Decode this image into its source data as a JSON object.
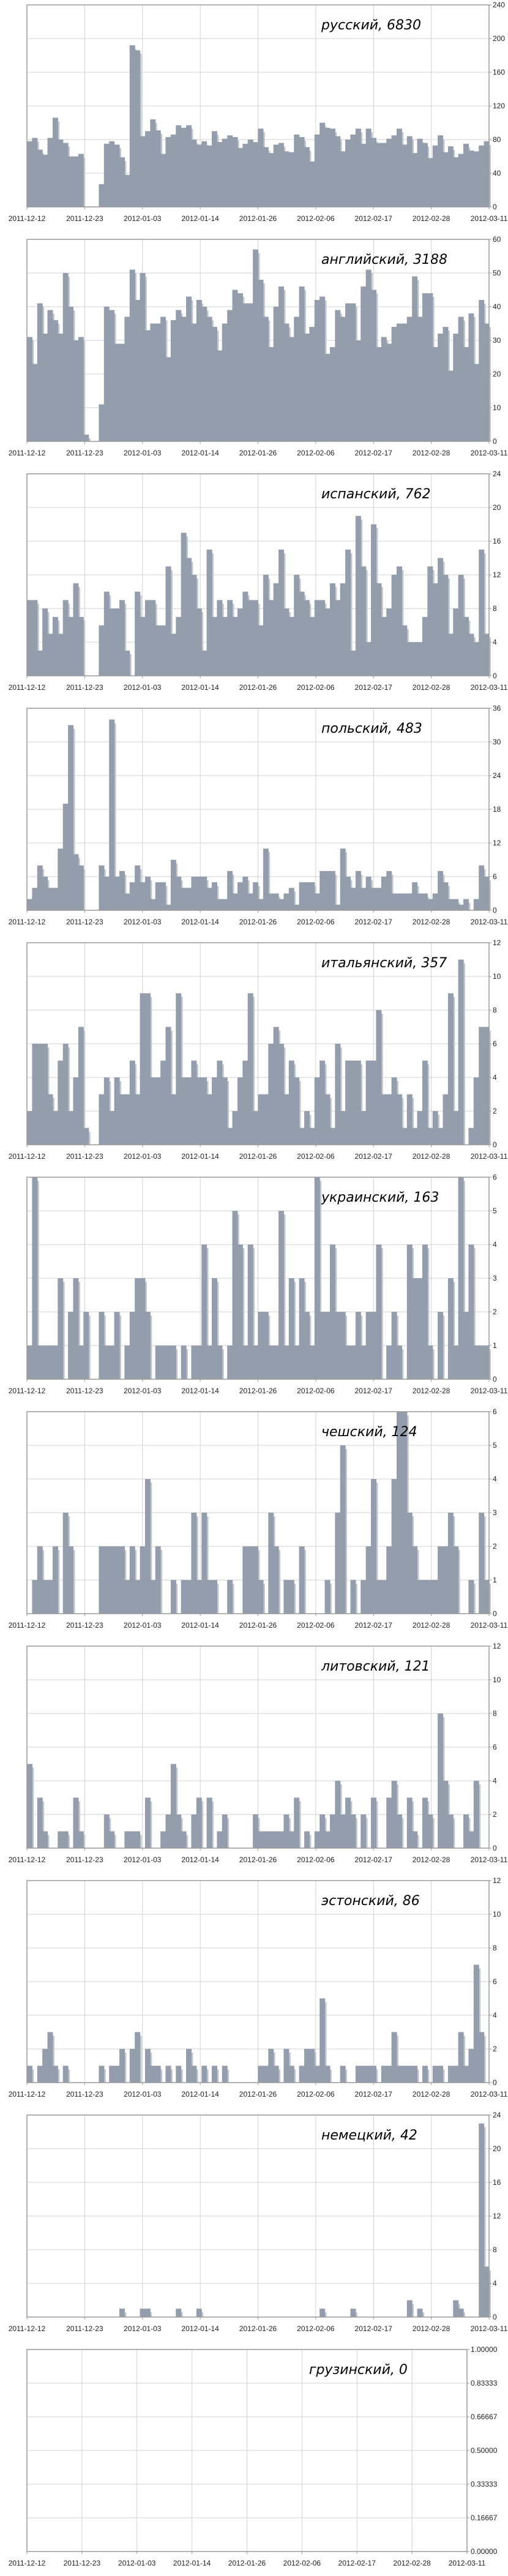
{
  "x_tick_labels": [
    "2011-12-12",
    "2011-12-23",
    "2012-01-03",
    "2012-01-14",
    "2012-01-26",
    "2012-02-06",
    "2012-02-17",
    "2012-02-28",
    "2012-03-11"
  ],
  "colors": {
    "bar": "#939dab",
    "shadow": "#c3c8cf",
    "grid": "#d0d0d0",
    "frame": "#9a9a9a"
  },
  "chart_data": [
    {
      "type": "bar",
      "title": "русский, 6830",
      "ylim": [
        0,
        240
      ],
      "yticks": [
        "0",
        "40",
        "80",
        "120",
        "160",
        "200",
        "240"
      ],
      "grid": true,
      "values": [
        78,
        82,
        68,
        62,
        82,
        106,
        80,
        76,
        60,
        60,
        63,
        0,
        0,
        0,
        27,
        75,
        78,
        74,
        59,
        38,
        192,
        186,
        84,
        90,
        104,
        91,
        63,
        83,
        86,
        97,
        94,
        97,
        80,
        74,
        78,
        73,
        90,
        77,
        81,
        85,
        83,
        70,
        75,
        80,
        77,
        93,
        71,
        64,
        74,
        76,
        66,
        65,
        86,
        83,
        71,
        54,
        86,
        100,
        94,
        93,
        84,
        66,
        80,
        86,
        93,
        75,
        93,
        82,
        76,
        76,
        81,
        85,
        93,
        74,
        84,
        64,
        81,
        76,
        58,
        73,
        85,
        65,
        72,
        59,
        63,
        75,
        67,
        66,
        73,
        78
      ]
    },
    {
      "type": "bar",
      "title": "английский, 3188",
      "ylim": [
        0,
        60
      ],
      "yticks": [
        "0",
        "10",
        "20",
        "30",
        "40",
        "50",
        "60"
      ],
      "grid": true,
      "values": [
        31,
        23,
        41,
        32,
        39,
        36,
        32,
        50,
        40,
        30,
        31,
        2,
        0,
        0,
        11,
        40,
        39,
        29,
        29,
        37,
        51,
        42,
        50,
        33,
        35,
        35,
        37,
        25,
        36,
        39,
        37,
        43,
        35,
        42,
        40,
        37,
        34,
        27,
        35,
        39,
        45,
        44,
        41,
        41,
        57,
        48,
        37,
        28,
        40,
        46,
        35,
        31,
        37,
        46,
        32,
        34,
        42,
        43,
        26,
        28,
        39,
        37,
        41,
        41,
        30,
        46,
        51,
        45,
        28,
        31,
        29,
        34,
        35,
        35,
        37,
        49,
        37,
        44,
        44,
        28,
        32,
        34,
        21,
        32,
        37,
        28,
        38,
        23,
        42,
        35
      ]
    },
    {
      "type": "bar",
      "title": "испанский, 762",
      "ylim": [
        0,
        24
      ],
      "yticks": [
        "0",
        "4",
        "8",
        "12",
        "16",
        "20",
        "24"
      ],
      "grid": true,
      "values": [
        9,
        9,
        3,
        8,
        5,
        7,
        5,
        9,
        7,
        11,
        7,
        0,
        0,
        0,
        6,
        10,
        8,
        8,
        9,
        3,
        0,
        10,
        7,
        9,
        9,
        6,
        6,
        13,
        5,
        7,
        17,
        14,
        12,
        8,
        3,
        15,
        7,
        9,
        7,
        9,
        7,
        8,
        10,
        9,
        9,
        6,
        12,
        9,
        11,
        15,
        8,
        7,
        12,
        10,
        9,
        7,
        9,
        9,
        8,
        11,
        9,
        11,
        15,
        3,
        19,
        13,
        4,
        18,
        11,
        7,
        8,
        12,
        13,
        6,
        4,
        4,
        4,
        7,
        13,
        11,
        14,
        12,
        5,
        8,
        12,
        7,
        5,
        4,
        15,
        5
      ]
    },
    {
      "type": "bar",
      "title": "польский, 483",
      "ylim": [
        0,
        36
      ],
      "yticks": [
        "0",
        "6",
        "12",
        "18",
        "24",
        "30",
        "36"
      ],
      "grid": true,
      "values": [
        2,
        4,
        8,
        6,
        4,
        4,
        11,
        19,
        33,
        10,
        8,
        0,
        0,
        0,
        8,
        6,
        34,
        6,
        7,
        3,
        5,
        8,
        5,
        6,
        2,
        5,
        5,
        1,
        9,
        6,
        4,
        4,
        6,
        6,
        6,
        4,
        5,
        2,
        2,
        7,
        3,
        5,
        6,
        3,
        5,
        2,
        11,
        3,
        3,
        2,
        3,
        4,
        1,
        5,
        5,
        5,
        3,
        7,
        7,
        7,
        1,
        11,
        6,
        4,
        7,
        4,
        6,
        4,
        4,
        6,
        7,
        3,
        3,
        3,
        3,
        5,
        3,
        3,
        2,
        3,
        7,
        5,
        2,
        2,
        1,
        2,
        0,
        2,
        8,
        6
      ]
    },
    {
      "type": "bar",
      "title": "итальянский, 357",
      "ylim": [
        0,
        12
      ],
      "yticks": [
        "0",
        "2",
        "4",
        "6",
        "8",
        "10",
        "12"
      ],
      "grid": true,
      "values": [
        2,
        6,
        6,
        6,
        3,
        2,
        5,
        6,
        2,
        4,
        7,
        1,
        0,
        0,
        3,
        4,
        2,
        4,
        3,
        3,
        5,
        3,
        9,
        9,
        4,
        4,
        5,
        7,
        3,
        9,
        4,
        4,
        5,
        4,
        4,
        3,
        4,
        5,
        4,
        1,
        2,
        4,
        5,
        9,
        2,
        3,
        3,
        6,
        7,
        6,
        3,
        5,
        4,
        1,
        2,
        1,
        4,
        5,
        3,
        1,
        6,
        2,
        5,
        5,
        5,
        2,
        5,
        5,
        8,
        3,
        3,
        4,
        3,
        1,
        3,
        1,
        2,
        5,
        1,
        2,
        1,
        3,
        9,
        2,
        11,
        0,
        1,
        4,
        7,
        7
      ]
    },
    {
      "type": "bar",
      "title": "украинский, 163",
      "ylim": [
        0,
        6
      ],
      "yticks": [
        "0",
        "1",
        "2",
        "3",
        "4",
        "5",
        "6"
      ],
      "grid": true,
      "values": [
        1,
        6,
        1,
        1,
        1,
        1,
        3,
        0,
        2,
        3,
        1,
        2,
        0,
        0,
        2,
        1,
        1,
        2,
        0,
        1,
        2,
        3,
        3,
        2,
        0,
        1,
        1,
        1,
        1,
        0,
        1,
        0,
        1,
        1,
        4,
        1,
        3,
        1,
        0,
        1,
        5,
        4,
        1,
        4,
        1,
        2,
        2,
        1,
        1,
        5,
        1,
        3,
        1,
        3,
        2,
        1,
        6,
        2,
        2,
        4,
        2,
        2,
        1,
        1,
        2,
        1,
        2,
        2,
        4,
        0,
        1,
        2,
        1,
        0,
        4,
        3,
        3,
        4,
        1,
        0,
        2,
        0,
        3,
        1,
        6,
        2,
        4,
        1,
        1,
        1
      ]
    },
    {
      "type": "bar",
      "title": "чешский, 124",
      "ylim": [
        0,
        6
      ],
      "yticks": [
        "0",
        "1",
        "2",
        "3",
        "4",
        "5",
        "6"
      ],
      "grid": true,
      "values": [
        0,
        1,
        2,
        1,
        1,
        2,
        0,
        3,
        2,
        0,
        0,
        0,
        0,
        0,
        2,
        2,
        2,
        2,
        2,
        1,
        2,
        1,
        2,
        4,
        1,
        2,
        0,
        0,
        1,
        0,
        1,
        1,
        3,
        1,
        3,
        1,
        1,
        0,
        0,
        1,
        0,
        0,
        2,
        2,
        2,
        1,
        0,
        3,
        2,
        0,
        1,
        1,
        0,
        2,
        0,
        0,
        0,
        0,
        1,
        0,
        3,
        5,
        0,
        1,
        0,
        1,
        2,
        4,
        1,
        1,
        2,
        4,
        6,
        6,
        3,
        2,
        1,
        1,
        1,
        1,
        2,
        2,
        3,
        2,
        0,
        0,
        1,
        0,
        3,
        1
      ]
    },
    {
      "type": "bar",
      "title": "литовский, 121",
      "ylim": [
        0,
        12
      ],
      "yticks": [
        "0",
        "2",
        "4",
        "6",
        "8",
        "10",
        "12"
      ],
      "grid": true,
      "values": [
        5,
        0,
        3,
        1,
        0,
        0,
        1,
        1,
        0,
        3,
        1,
        0,
        0,
        0,
        0,
        2,
        1,
        0,
        0,
        1,
        1,
        1,
        0,
        3,
        0,
        0,
        1,
        2,
        5,
        2,
        1,
        0,
        2,
        3,
        0,
        3,
        0,
        1,
        2,
        0,
        0,
        0,
        0,
        0,
        2,
        1,
        1,
        1,
        1,
        1,
        2,
        1,
        3,
        0,
        1,
        0,
        1,
        2,
        1,
        2,
        4,
        2,
        3,
        2,
        0,
        2,
        0,
        3,
        0,
        0,
        3,
        4,
        2,
        0,
        3,
        1,
        0,
        3,
        2,
        0,
        8,
        4,
        2,
        0,
        0,
        2,
        1,
        4,
        0,
        0
      ]
    },
    {
      "type": "bar",
      "title": "эстонский, 86",
      "ylim": [
        0,
        12
      ],
      "yticks": [
        "0",
        "2",
        "4",
        "6",
        "8",
        "10",
        "12"
      ],
      "grid": true,
      "values": [
        1,
        0,
        1,
        2,
        3,
        1,
        0,
        1,
        0,
        0,
        0,
        0,
        0,
        0,
        1,
        0,
        1,
        1,
        2,
        0,
        2,
        3,
        0,
        2,
        1,
        1,
        0,
        1,
        0,
        1,
        0,
        2,
        1,
        0,
        1,
        0,
        1,
        0,
        1,
        0,
        0,
        0,
        0,
        0,
        0,
        1,
        1,
        2,
        1,
        0,
        2,
        1,
        0,
        1,
        2,
        2,
        1,
        5,
        1,
        0,
        0,
        1,
        0,
        0,
        1,
        1,
        1,
        1,
        0,
        1,
        1,
        3,
        1,
        1,
        1,
        1,
        0,
        1,
        0,
        1,
        1,
        0,
        1,
        1,
        3,
        1,
        2,
        7,
        3,
        0
      ]
    },
    {
      "type": "bar",
      "title": "немецкий, 42",
      "ylim": [
        0,
        24
      ],
      "yticks": [
        "0",
        "4",
        "8",
        "12",
        "16",
        "20",
        "24"
      ],
      "grid": true,
      "values": [
        0,
        0,
        0,
        0,
        0,
        0,
        0,
        0,
        0,
        0,
        0,
        0,
        0,
        0,
        0,
        0,
        0,
        0,
        1,
        0,
        0,
        0,
        1,
        1,
        0,
        0,
        0,
        0,
        0,
        1,
        0,
        0,
        0,
        1,
        0,
        0,
        0,
        0,
        0,
        0,
        0,
        0,
        0,
        0,
        0,
        0,
        0,
        0,
        0,
        0,
        0,
        0,
        0,
        0,
        0,
        0,
        0,
        1,
        0,
        0,
        0,
        0,
        0,
        1,
        0,
        0,
        0,
        0,
        0,
        0,
        0,
        0,
        0,
        0,
        2,
        0,
        1,
        0,
        0,
        0,
        0,
        0,
        0,
        2,
        1,
        0,
        0,
        0,
        23,
        6
      ]
    },
    {
      "type": "bar",
      "title": "грузинский, 0",
      "ylim": [
        0,
        1
      ],
      "yticks": [
        "0.00000",
        "0.16667",
        "0.33333",
        "0.50000",
        "0.66667",
        "0.83333",
        "1.00000"
      ],
      "grid": true,
      "values": []
    }
  ]
}
